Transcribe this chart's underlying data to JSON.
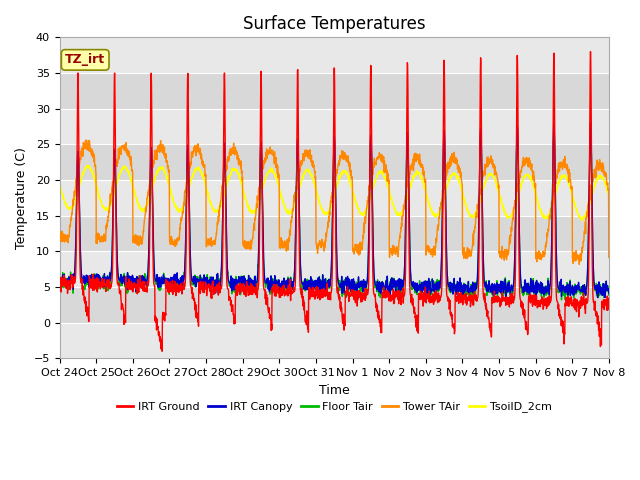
{
  "title": "Surface Temperatures",
  "xlabel": "Time",
  "ylabel": "Temperature (C)",
  "ylim": [
    -5,
    40
  ],
  "annotation_text": "TZ_irt",
  "legend_entries": [
    {
      "label": "IRT Ground",
      "color": "#ff0000"
    },
    {
      "label": "IRT Canopy",
      "color": "#0000cc"
    },
    {
      "label": "Floor Tair",
      "color": "#00bb00"
    },
    {
      "label": "Tower TAir",
      "color": "#ff8800"
    },
    {
      "label": "TsoilD_2cm",
      "color": "#ffff00"
    }
  ],
  "xtick_labels": [
    "Oct 24",
    "Oct 25",
    "Oct 26",
    "Oct 27",
    "Oct 28",
    "Oct 29",
    "Oct 30",
    "Oct 31",
    "Nov 1",
    "Nov 2",
    "Nov 3",
    "Nov 4",
    "Nov 5",
    "Nov 6",
    "Nov 7",
    "Nov 8"
  ],
  "background_color": "#ffffff",
  "plot_bg_color": "#e8e8e8",
  "grid_color": "#ffffff",
  "title_fontsize": 12,
  "axis_label_fontsize": 9,
  "tick_fontsize": 8,
  "band_colors": [
    "#e0e0e0",
    "#d0d0d0"
  ]
}
